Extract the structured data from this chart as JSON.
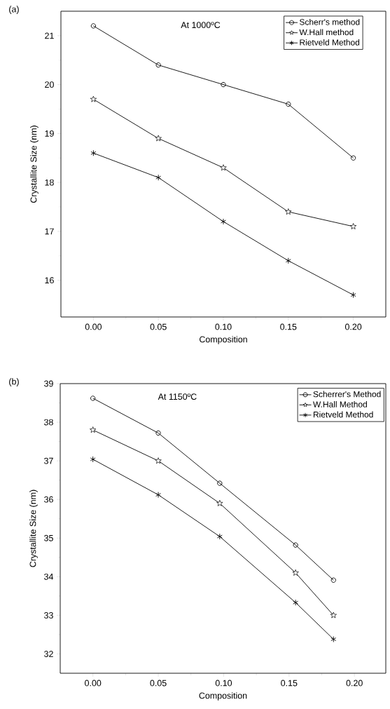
{
  "chart_data": [
    {
      "type": "line",
      "xlabel": "Composition",
      "ylabel": "Crystallite Size (nm)",
      "annotations": [
        "(a)",
        "At 1000ºC"
      ],
      "xlim": [
        -0.025,
        0.225
      ],
      "ylim": [
        15.25,
        21.5
      ],
      "xticks": [
        {
          "value": 0,
          "label": "0.00"
        },
        {
          "value": 0.05,
          "label": "0.05"
        },
        {
          "value": 0.1,
          "label": "0.10"
        },
        {
          "value": 0.15,
          "label": "0.15"
        },
        {
          "value": 0.2,
          "label": "0.20"
        }
      ],
      "yticks": [
        16,
        17,
        18,
        19,
        20,
        21
      ],
      "legend": "top right",
      "grid": false,
      "series": [
        {
          "name": "Scherr's method",
          "color": "#000000",
          "marker": "circle",
          "x": [
            0,
            0.05,
            0.1,
            0.15,
            0.2
          ],
          "values": [
            21.2,
            20.4,
            20.0,
            19.6,
            18.5
          ]
        },
        {
          "name": "W.Hall method",
          "color": "#000000",
          "marker": "star",
          "x": [
            0,
            0.05,
            0.1,
            0.15,
            0.2
          ],
          "values": [
            19.7,
            18.9,
            18.3,
            17.4,
            17.1
          ]
        },
        {
          "name": "Rietveld Method",
          "color": "#000000",
          "marker": "cross",
          "x": [
            0,
            0.05,
            0.1,
            0.15,
            0.2
          ],
          "values": [
            18.6,
            18.1,
            17.2,
            16.4,
            15.7
          ]
        }
      ]
    },
    {
      "type": "line",
      "xlabel": "Composition",
      "ylabel": "Crystallite Size (nm)",
      "annotations": [
        "(b)",
        "At 1150ºC"
      ],
      "xlim": [
        -0.025,
        0.224
      ],
      "ylim": [
        31.5,
        39
      ],
      "xticks": [
        {
          "value": 0,
          "label": "0.00"
        },
        {
          "value": 0.05,
          "label": "0.05"
        },
        {
          "value": 0.1,
          "label": "0.10"
        },
        {
          "value": 0.15,
          "label": "0.15"
        },
        {
          "value": 0.2,
          "label": "0.20"
        }
      ],
      "yticks": [
        32,
        33,
        34,
        35,
        36,
        37,
        38,
        39
      ],
      "legend": "top right",
      "grid": false,
      "series": [
        {
          "name": "Scherrer's Method",
          "color": "#000000",
          "marker": "circle",
          "x": [
            0,
            0.05,
            0.097,
            0.155,
            0.184
          ],
          "values": [
            38.62,
            37.72,
            36.42,
            34.82,
            33.91
          ]
        },
        {
          "name": "W.Hall Method",
          "color": "#000000",
          "marker": "star",
          "x": [
            0,
            0.05,
            0.097,
            0.155,
            0.184
          ],
          "values": [
            37.8,
            37.0,
            35.9,
            34.1,
            33.0
          ]
        },
        {
          "name": "Rietveld Method",
          "color": "#000000",
          "marker": "cross",
          "x": [
            0,
            0.05,
            0.097,
            0.155,
            0.184
          ],
          "values": [
            37.04,
            36.12,
            35.04,
            33.33,
            32.38
          ]
        }
      ]
    }
  ]
}
